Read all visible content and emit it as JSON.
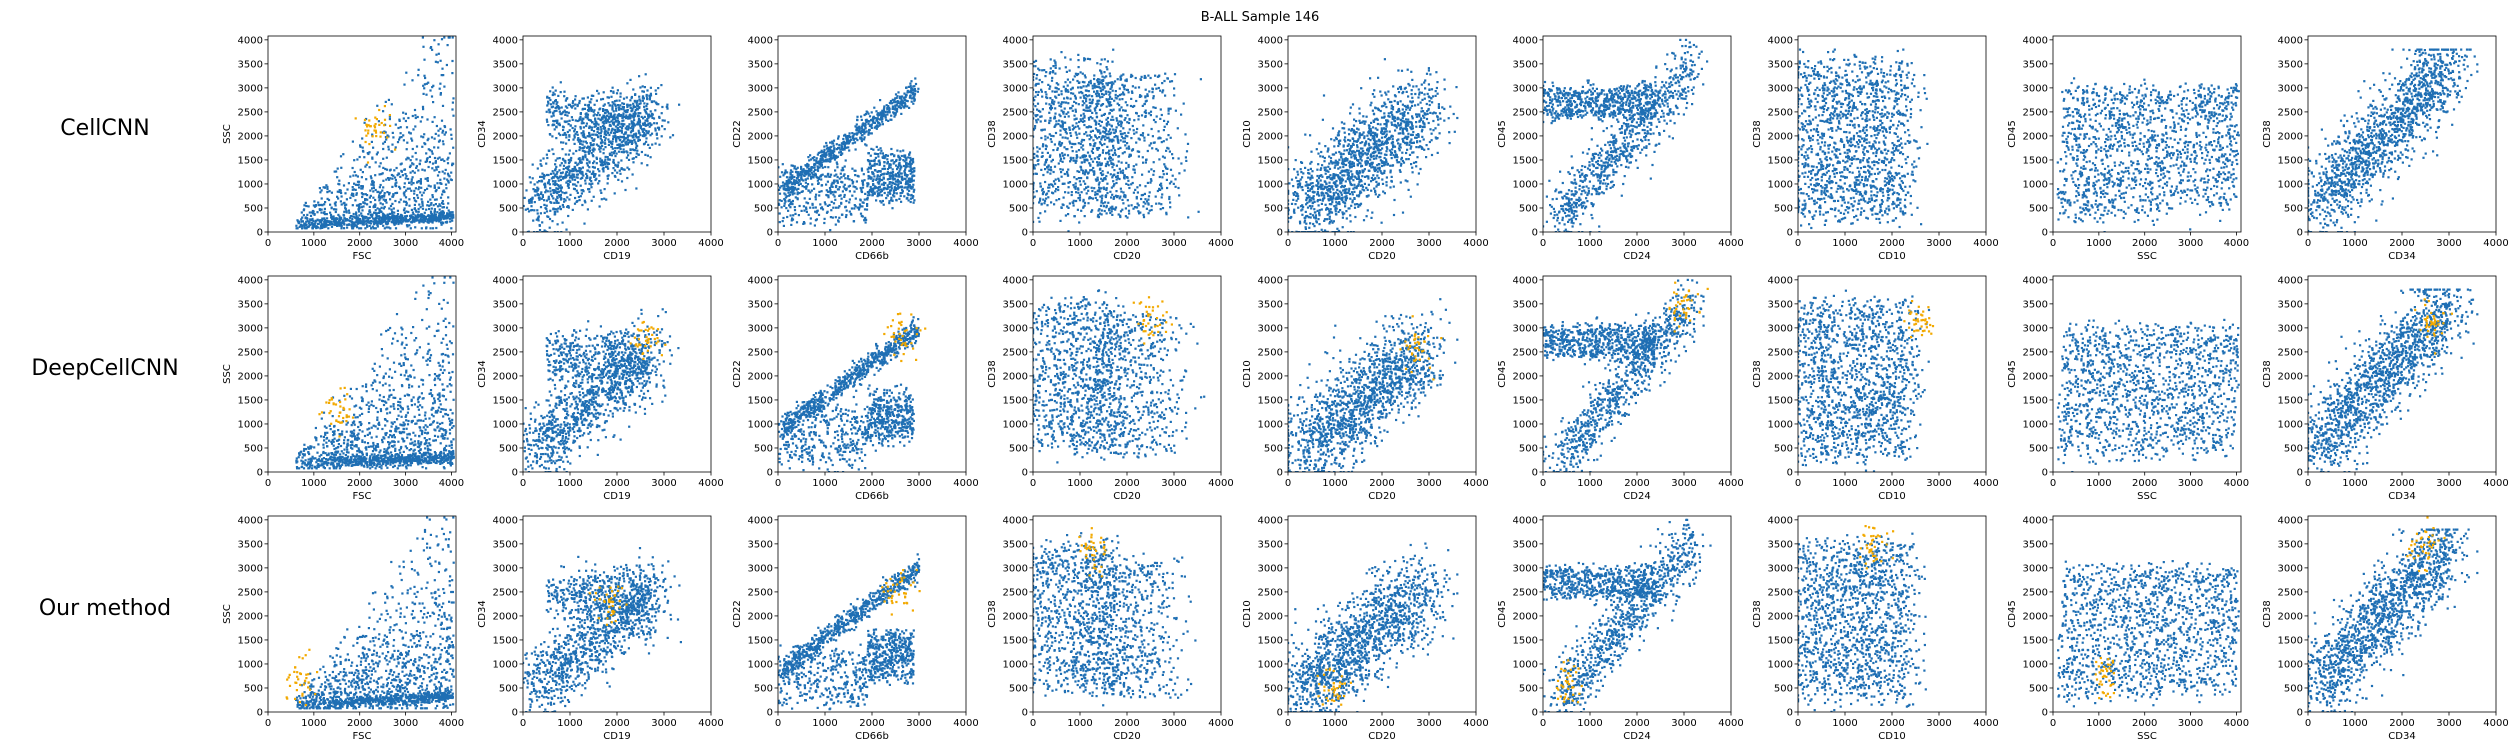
{
  "title": "B-ALL Sample 146",
  "colors": {
    "background_cells": "#1f6fb4",
    "selected_cells": "#f2a900",
    "axes": "#000000"
  },
  "methods": [
    "CellCNN",
    "DeepCellCNN",
    "Our method"
  ],
  "chart_data": {
    "type": "scatter",
    "title": "B-ALL Sample 146",
    "grid": false,
    "xticks": [
      "0",
      "1000",
      "2000",
      "3000",
      "4000"
    ],
    "yticks": [
      "0",
      "500",
      "1000",
      "1500",
      "2000",
      "2500",
      "3000",
      "3500",
      "4000"
    ],
    "xlim": [
      0,
      4000
    ],
    "ylim": [
      0,
      4000
    ],
    "series": [
      {
        "name": "",
        "color": "#1f6fb4"
      },
      {
        "name": "",
        "color": "#f2a900"
      }
    ],
    "panels": [
      {
        "xlabel": "FSC",
        "ylabel": "SSC",
        "shape": "fsc_ssc",
        "xlim": [
          0,
          4100
        ],
        "hl": [
          [
            2300,
            2100
          ],
          [
            1500,
            1300
          ],
          [
            700,
            700
          ]
        ]
      },
      {
        "xlabel": "CD19",
        "ylabel": "CD34",
        "shape": "cd19_cd34",
        "xlim": [
          0,
          4000
        ],
        "hl": [
          null,
          [
            2600,
            2800
          ],
          [
            1900,
            2300
          ]
        ]
      },
      {
        "xlabel": "CD66b",
        "ylabel": "CD22",
        "shape": "cd66b_cd22",
        "xlim": [
          0,
          4000
        ],
        "hl": [
          null,
          [
            2700,
            2800
          ],
          [
            2600,
            2500
          ]
        ]
      },
      {
        "xlabel": "CD20",
        "ylabel": "CD38",
        "shape": "cd20_cd38",
        "xlim": [
          0,
          4000
        ],
        "hl": [
          null,
          [
            2500,
            3200
          ],
          [
            1300,
            3400
          ]
        ]
      },
      {
        "xlabel": "CD20",
        "ylabel": "CD10",
        "shape": "cd20_cd10",
        "xlim": [
          0,
          4000
        ],
        "hl": [
          null,
          [
            2700,
            2600
          ],
          [
            900,
            500
          ]
        ]
      },
      {
        "xlabel": "CD24",
        "ylabel": "CD45",
        "shape": "cd24_cd45",
        "xlim": [
          0,
          4000
        ],
        "hl": [
          null,
          [
            3000,
            3500
          ],
          [
            500,
            600
          ]
        ]
      },
      {
        "xlabel": "CD10",
        "ylabel": "CD38",
        "shape": "cd10_cd38",
        "xlim": [
          0,
          4000
        ],
        "hl": [
          null,
          [
            2600,
            3100
          ],
          [
            1600,
            3400
          ]
        ]
      },
      {
        "xlabel": "SSC",
        "ylabel": "CD45",
        "shape": "ssc_cd45",
        "xlim": [
          0,
          4100
        ],
        "hl": [
          null,
          null,
          [
            1200,
            800
          ]
        ]
      },
      {
        "xlabel": "CD34",
        "ylabel": "CD38",
        "shape": "cd34_cd38",
        "xlim": [
          0,
          4000
        ],
        "hl": [
          null,
          [
            2700,
            3100
          ],
          [
            2500,
            3500
          ]
        ]
      }
    ]
  }
}
